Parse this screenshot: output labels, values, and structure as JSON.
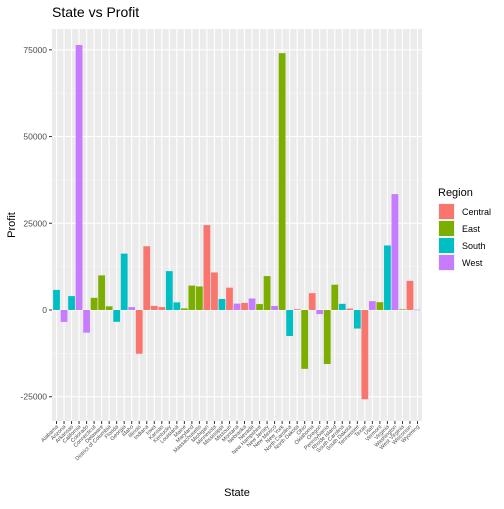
{
  "chart_data": {
    "type": "bar",
    "title": "State vs Profit",
    "xlabel": "State",
    "ylabel": "Profit",
    "ylim": [
      -32000,
      81000
    ],
    "yticks": [
      -25000,
      0,
      25000,
      50000,
      75000
    ],
    "ytick_labels": [
      "-25000",
      "0",
      "25000",
      "50000",
      "75000"
    ],
    "grid": true,
    "legend": {
      "title": "Region",
      "placement": "right",
      "entries": [
        {
          "name": "Central",
          "color": "#F8766D"
        },
        {
          "name": "East",
          "color": "#7CAE00"
        },
        {
          "name": "South",
          "color": "#00BFC4"
        },
        {
          "name": "West",
          "color": "#C77CFF"
        }
      ]
    },
    "categories": [
      "Alabama",
      "Arizona",
      "Arkansas",
      "California",
      "Colorado",
      "Connecticut",
      "Delaware",
      "District of Columbia",
      "Florida",
      "Georgia",
      "Idaho",
      "Illinois",
      "Indiana",
      "Iowa",
      "Kansas",
      "Kentucky",
      "Louisiana",
      "Maine",
      "Maryland",
      "Massachusetts",
      "Michigan",
      "Minnesota",
      "Mississippi",
      "Missouri",
      "Montana",
      "Nebraska",
      "Nevada",
      "New Hampshire",
      "New Jersey",
      "New Mexico",
      "New York",
      "North Carolina",
      "North Dakota",
      "Ohio",
      "Oklahoma",
      "Oregon",
      "Pennsylvania",
      "Rhode Island",
      "South Carolina",
      "South Dakota",
      "Tennessee",
      "Texas",
      "Utah",
      "Vermont",
      "Virginia",
      "Washington",
      "West Virginia",
      "Wisconsin",
      "Wyoming"
    ],
    "bars": [
      {
        "state": "Alabama",
        "region": "South",
        "value": 5787
      },
      {
        "state": "Arizona",
        "region": "West",
        "value": -3428
      },
      {
        "state": "Arkansas",
        "region": "South",
        "value": 4009
      },
      {
        "state": "California",
        "region": "West",
        "value": 76381
      },
      {
        "state": "Colorado",
        "region": "West",
        "value": -6528
      },
      {
        "state": "Connecticut",
        "region": "East",
        "value": 3511
      },
      {
        "state": "Delaware",
        "region": "East",
        "value": 9977
      },
      {
        "state": "District of Columbia",
        "region": "East",
        "value": 1060
      },
      {
        "state": "Florida",
        "region": "South",
        "value": -3399
      },
      {
        "state": "Georgia",
        "region": "South",
        "value": 16250
      },
      {
        "state": "Idaho",
        "region": "West",
        "value": 827
      },
      {
        "state": "Illinois",
        "region": "Central",
        "value": -12608
      },
      {
        "state": "Indiana",
        "region": "Central",
        "value": 18383
      },
      {
        "state": "Iowa",
        "region": "Central",
        "value": 1184
      },
      {
        "state": "Kansas",
        "region": "Central",
        "value": 836
      },
      {
        "state": "Kentucky",
        "region": "South",
        "value": 11200
      },
      {
        "state": "Louisiana",
        "region": "South",
        "value": 2196
      },
      {
        "state": "Maine",
        "region": "East",
        "value": 454
      },
      {
        "state": "Maryland",
        "region": "East",
        "value": 7031
      },
      {
        "state": "Massachusetts",
        "region": "East",
        "value": 6786
      },
      {
        "state": "Michigan",
        "region": "Central",
        "value": 24463
      },
      {
        "state": "Minnesota",
        "region": "Central",
        "value": 10823
      },
      {
        "state": "Mississippi",
        "region": "South",
        "value": 3173
      },
      {
        "state": "Missouri",
        "region": "Central",
        "value": 6436
      },
      {
        "state": "Montana",
        "region": "West",
        "value": 1834
      },
      {
        "state": "Nebraska",
        "region": "Central",
        "value": 2037
      },
      {
        "state": "Nevada",
        "region": "West",
        "value": 3317
      },
      {
        "state": "New Hampshire",
        "region": "East",
        "value": 1707
      },
      {
        "state": "New Jersey",
        "region": "East",
        "value": 9773
      },
      {
        "state": "New Mexico",
        "region": "West",
        "value": 1157
      },
      {
        "state": "New York",
        "region": "East",
        "value": 74039
      },
      {
        "state": "North Carolina",
        "region": "South",
        "value": -7491
      },
      {
        "state": "North Dakota",
        "region": "Central",
        "value": 230
      },
      {
        "state": "Ohio",
        "region": "East",
        "value": -16971
      },
      {
        "state": "Oklahoma",
        "region": "Central",
        "value": 4853
      },
      {
        "state": "Oregon",
        "region": "West",
        "value": -1191
      },
      {
        "state": "Pennsylvania",
        "region": "East",
        "value": -15560
      },
      {
        "state": "Rhode Island",
        "region": "East",
        "value": 7286
      },
      {
        "state": "South Carolina",
        "region": "South",
        "value": 1770
      },
      {
        "state": "South Dakota",
        "region": "Central",
        "value": 395
      },
      {
        "state": "Tennessee",
        "region": "South",
        "value": -5342
      },
      {
        "state": "Texas",
        "region": "Central",
        "value": -25729
      },
      {
        "state": "Utah",
        "region": "West",
        "value": 2547
      },
      {
        "state": "Vermont",
        "region": "East",
        "value": 2245
      },
      {
        "state": "Virginia",
        "region": "South",
        "value": 18598
      },
      {
        "state": "Washington",
        "region": "West",
        "value": 33403
      },
      {
        "state": "West Virginia",
        "region": "East",
        "value": 186
      },
      {
        "state": "Wisconsin",
        "region": "Central",
        "value": 8402
      },
      {
        "state": "Wyoming",
        "region": "West",
        "value": 100
      }
    ]
  }
}
